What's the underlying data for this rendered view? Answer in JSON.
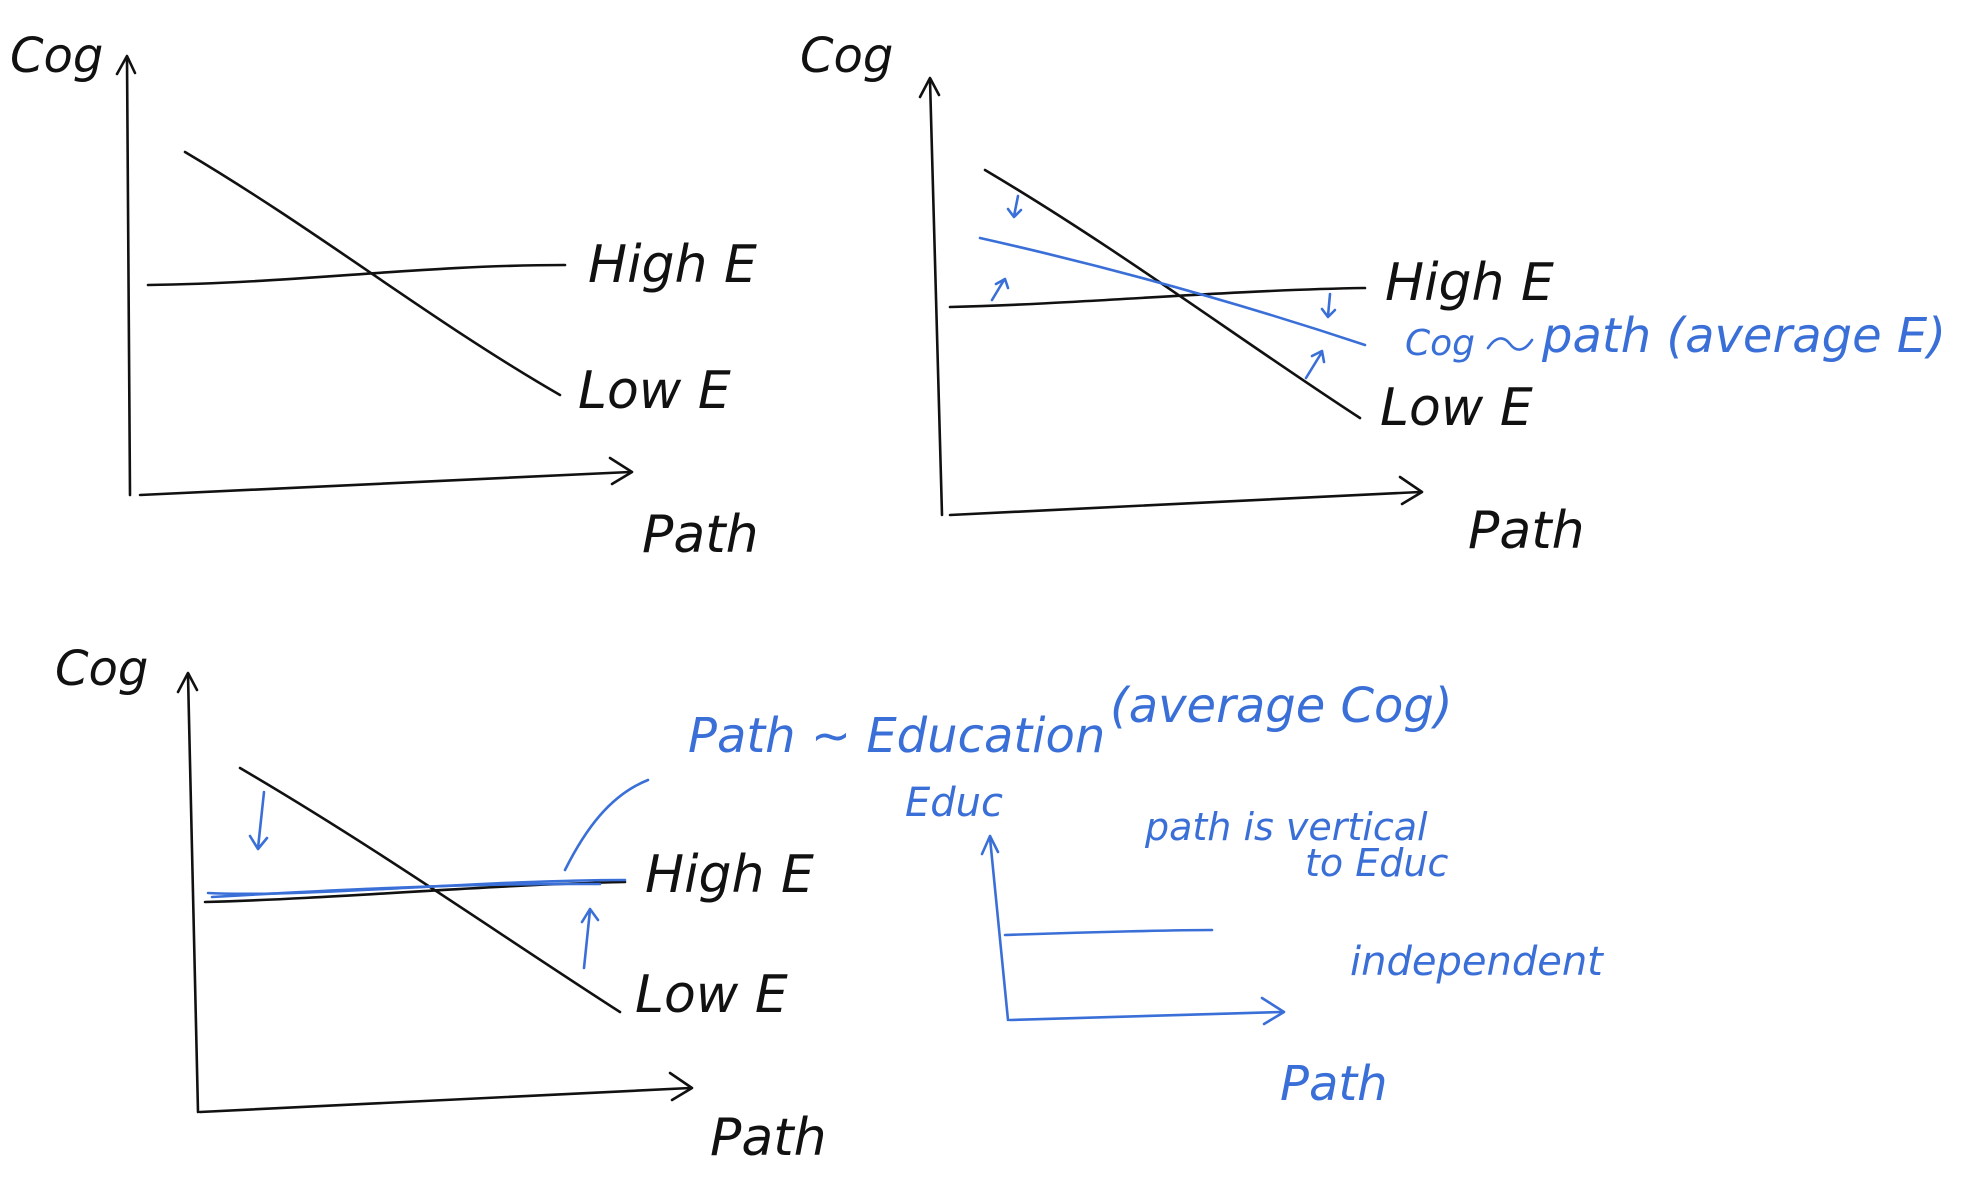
{
  "colors": {
    "ink": "#111111",
    "blue": "#3a6fd8",
    "background": "#ffffff"
  },
  "panels": [
    {
      "y_axis_label": "Cog",
      "x_axis_label": "Path",
      "lines": {
        "high": "High E",
        "low": "Low E"
      }
    },
    {
      "y_axis_label": "Cog",
      "x_axis_label": "Path",
      "lines": {
        "high": "High E",
        "low": "Low E"
      },
      "annotation": {
        "lhs": "Cog",
        "rhs": "path (average E)"
      }
    },
    {
      "y_axis_label": "Cog",
      "x_axis_label": "Path",
      "lines": {
        "high": "High E",
        "low": "Low E"
      },
      "annotation": {
        "formula": "Path ~ Education",
        "paren": "(average Cog)"
      }
    }
  ],
  "inset": {
    "y_axis_label": "Educ",
    "x_axis_label": "Path",
    "note_line1": "path is vertical",
    "note_line2": "to Educ",
    "note_line3": "independent"
  }
}
